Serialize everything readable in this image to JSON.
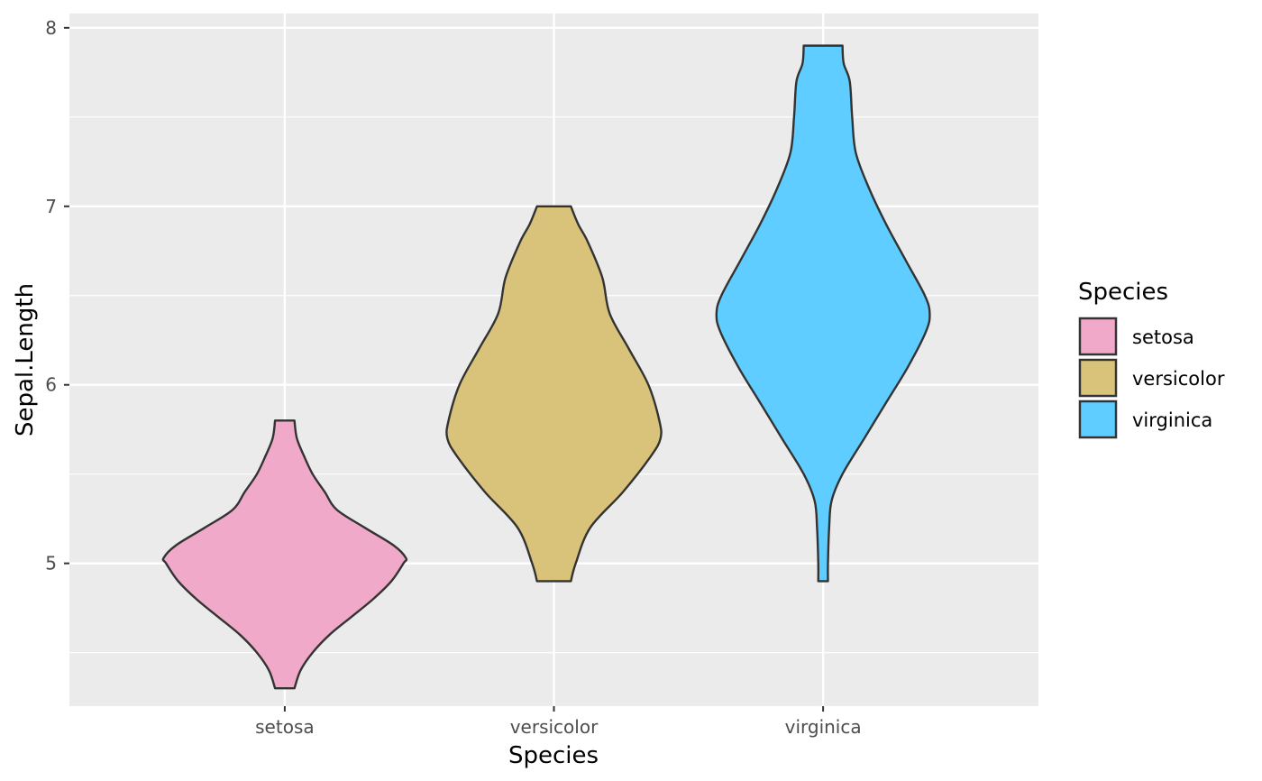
{
  "chart_data": {
    "type": "violin",
    "title": "",
    "xlabel": "Species",
    "ylabel": "Sepal.Length",
    "ylim": [
      4.2,
      8.08
    ],
    "y_ticks": [
      5,
      6,
      7,
      8
    ],
    "y_tick_labels": [
      "5",
      "6",
      "7",
      "8"
    ],
    "y_minor_ticks": [
      4.5,
      5.5,
      6.5,
      7.5
    ],
    "categories": [
      "setosa",
      "versicolor",
      "virginica"
    ],
    "legend": {
      "title": "Species",
      "position": "right",
      "entries": [
        "setosa",
        "versicolor",
        "virginica"
      ]
    },
    "series": [
      {
        "name": "setosa",
        "fill": "#F0A9C8",
        "range": [
          4.3,
          5.8
        ],
        "profile": [
          [
            4.3,
            0.08
          ],
          [
            4.4,
            0.13
          ],
          [
            4.5,
            0.23
          ],
          [
            4.6,
            0.37
          ],
          [
            4.7,
            0.55
          ],
          [
            4.8,
            0.73
          ],
          [
            4.9,
            0.88
          ],
          [
            5.0,
            0.98
          ],
          [
            5.03,
            1.0
          ],
          [
            5.1,
            0.9
          ],
          [
            5.2,
            0.66
          ],
          [
            5.3,
            0.43
          ],
          [
            5.4,
            0.33
          ],
          [
            5.5,
            0.23
          ],
          [
            5.6,
            0.16
          ],
          [
            5.7,
            0.1
          ],
          [
            5.8,
            0.08
          ]
        ]
      },
      {
        "name": "versicolor",
        "fill": "#D9C37A",
        "range": [
          4.9,
          7.0
        ],
        "profile": [
          [
            4.9,
            0.14
          ],
          [
            5.0,
            0.18
          ],
          [
            5.2,
            0.3
          ],
          [
            5.4,
            0.57
          ],
          [
            5.6,
            0.8
          ],
          [
            5.7,
            0.88
          ],
          [
            5.8,
            0.87
          ],
          [
            6.0,
            0.78
          ],
          [
            6.2,
            0.62
          ],
          [
            6.4,
            0.46
          ],
          [
            6.6,
            0.4
          ],
          [
            6.8,
            0.28
          ],
          [
            6.9,
            0.2
          ],
          [
            7.0,
            0.14
          ]
        ]
      },
      {
        "name": "virginica",
        "fill": "#5FCDFF",
        "range": [
          4.9,
          7.9
        ],
        "profile": [
          [
            4.9,
            0.04
          ],
          [
            5.0,
            0.04
          ],
          [
            5.2,
            0.05
          ],
          [
            5.35,
            0.07
          ],
          [
            5.5,
            0.16
          ],
          [
            5.7,
            0.34
          ],
          [
            5.9,
            0.52
          ],
          [
            6.1,
            0.7
          ],
          [
            6.3,
            0.85
          ],
          [
            6.4,
            0.88
          ],
          [
            6.5,
            0.84
          ],
          [
            6.7,
            0.68
          ],
          [
            6.9,
            0.52
          ],
          [
            7.1,
            0.38
          ],
          [
            7.3,
            0.27
          ],
          [
            7.5,
            0.24
          ],
          [
            7.7,
            0.22
          ],
          [
            7.8,
            0.17
          ],
          [
            7.9,
            0.16
          ]
        ]
      }
    ],
    "colors": {
      "panel_background": "#EBEBEB",
      "grid_major": "#FFFFFF",
      "outline": "#333333"
    }
  }
}
